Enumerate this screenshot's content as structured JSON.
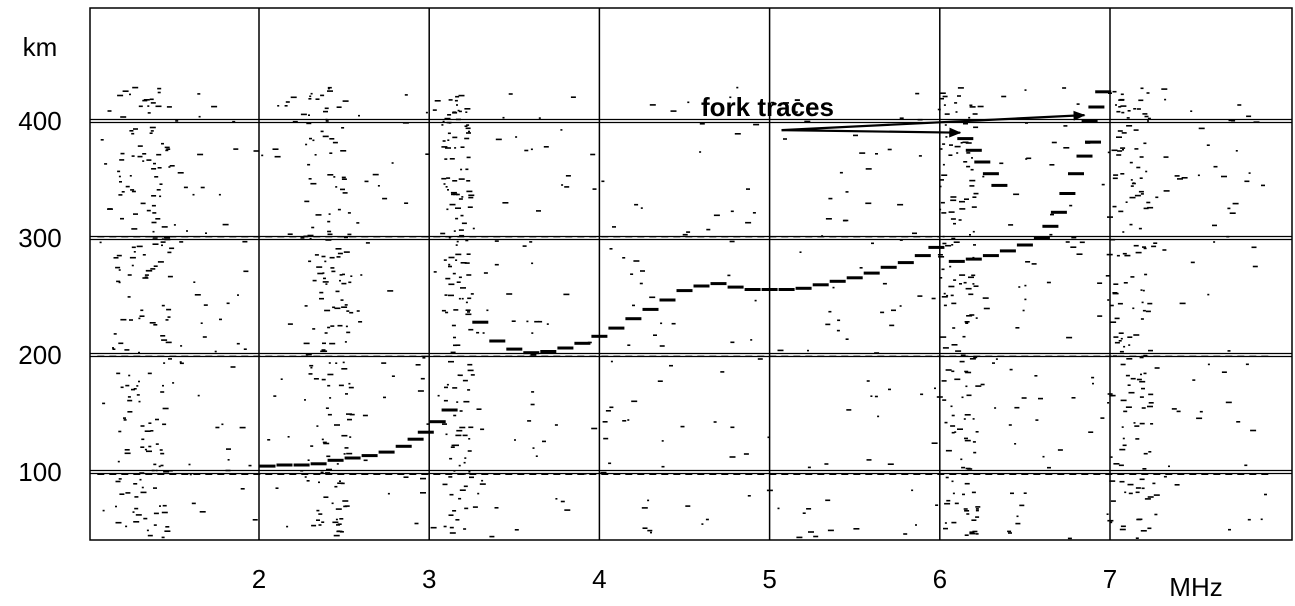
{
  "chart_data": {
    "type": "scatter",
    "title": "",
    "xlabel": "MHz",
    "ylabel": "km",
    "xlim": [
      1.0,
      8.0
    ],
    "ylim": [
      35,
      435
    ],
    "x_ticks": [
      2,
      3,
      4,
      5,
      6,
      7
    ],
    "x_tick_labels": [
      "2",
      "3",
      "4",
      "5",
      "6",
      "7"
    ],
    "y_ticks": [
      100,
      200,
      300,
      400
    ],
    "y_tick_labels": [
      "100",
      "200",
      "300",
      "400"
    ],
    "grid": true,
    "legend": "none",
    "colors": {
      "trace": "#000000",
      "grid": "#000000",
      "background": "#ffffff"
    },
    "annotation": {
      "text": "fork traces",
      "anchor": [
        5.07,
        423
      ],
      "targets": [
        [
          6.85,
          405
        ],
        [
          6.12,
          390
        ]
      ]
    },
    "series": [
      {
        "name": "",
        "points": [
          [
            2.05,
            105
          ],
          [
            2.15,
            106
          ],
          [
            2.25,
            106
          ],
          [
            2.35,
            107
          ],
          [
            2.45,
            110
          ],
          [
            2.55,
            112
          ],
          [
            2.65,
            114
          ],
          [
            2.75,
            117
          ],
          [
            2.85,
            122
          ],
          [
            2.92,
            128
          ],
          [
            2.98,
            134
          ],
          [
            3.05,
            143
          ],
          [
            3.12,
            153
          ],
          [
            3.3,
            228
          ],
          [
            3.4,
            212
          ],
          [
            3.5,
            205
          ],
          [
            3.6,
            202
          ],
          [
            3.7,
            203
          ],
          [
            3.8,
            206
          ],
          [
            3.9,
            210
          ],
          [
            4.0,
            216
          ],
          [
            4.1,
            223
          ],
          [
            4.2,
            231
          ],
          [
            4.3,
            239
          ],
          [
            4.4,
            247
          ],
          [
            4.5,
            255
          ],
          [
            4.6,
            259
          ],
          [
            4.7,
            261
          ],
          [
            4.8,
            258
          ],
          [
            4.9,
            256
          ],
          [
            5.0,
            256
          ],
          [
            5.1,
            256
          ],
          [
            5.2,
            257
          ],
          [
            5.3,
            260
          ],
          [
            5.4,
            263
          ],
          [
            5.5,
            266
          ],
          [
            5.6,
            270
          ],
          [
            5.7,
            275
          ],
          [
            5.8,
            279
          ],
          [
            5.9,
            285
          ],
          [
            5.98,
            292
          ],
          [
            6.1,
            280
          ],
          [
            6.2,
            282
          ],
          [
            6.3,
            285
          ],
          [
            6.4,
            289
          ],
          [
            6.5,
            294
          ],
          [
            6.6,
            300
          ],
          [
            6.65,
            310
          ],
          [
            6.7,
            322
          ],
          [
            6.75,
            338
          ],
          [
            6.8,
            355
          ],
          [
            6.85,
            370
          ],
          [
            6.9,
            382
          ],
          [
            6.15,
            385
          ],
          [
            6.2,
            375
          ],
          [
            6.25,
            365
          ],
          [
            6.3,
            355
          ],
          [
            6.35,
            345
          ],
          [
            6.88,
            400
          ],
          [
            6.92,
            412
          ],
          [
            6.96,
            425
          ]
        ]
      }
    ]
  }
}
